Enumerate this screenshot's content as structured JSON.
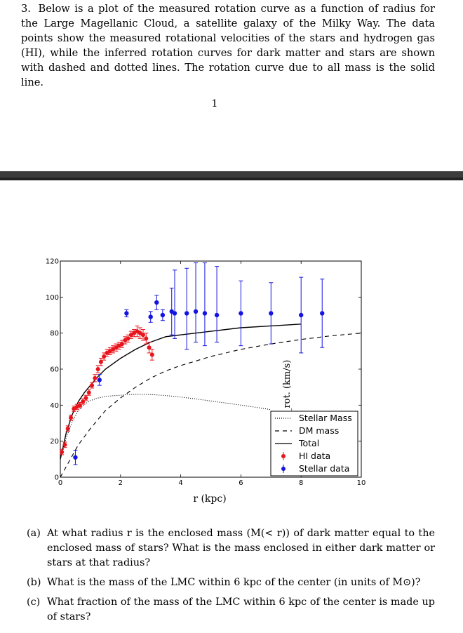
{
  "problem": {
    "number": "3.",
    "text": "Below is a plot of the measured rotation curve as a function of radius for the Large Magellanic Cloud, a satellite galaxy of the Milky Way. The data points show the measured rotational velocities of the stars and hydrogen gas (HI), while the inferred rotation curves for dark matter and stars are shown with dashed and dotted lines. The rotation curve due to all mass is the solid line."
  },
  "page_number": "1",
  "chart_data": {
    "type": "scatter",
    "xlabel": "r (kpc)",
    "ylabel": "v_rot. (km/s)",
    "xlim": [
      0,
      10
    ],
    "ylim": [
      0,
      120
    ],
    "xticks": [
      0,
      2,
      4,
      6,
      8,
      10
    ],
    "yticks": [
      0,
      20,
      40,
      60,
      80,
      100,
      120
    ],
    "legend_position": "bottom-right",
    "legend": [
      "Stellar Mass",
      "DM mass",
      "Total",
      "HI data",
      "Stellar data"
    ],
    "colors": {
      "hi": "#e8141c",
      "stellar": "#1414e0",
      "lines": "#000000"
    },
    "series": [
      {
        "name": "Stellar Mass",
        "style": "dotted",
        "x": [
          0.0,
          0.2,
          0.4,
          0.6,
          0.8,
          1.0,
          1.2,
          1.4,
          1.6,
          1.8,
          2.0,
          2.2,
          2.5,
          2.8,
          3.2,
          3.6,
          4.0,
          4.5,
          5.0,
          5.5,
          6.0,
          6.5,
          7.0
        ],
        "y": [
          10,
          22,
          31,
          37,
          40.5,
          42.5,
          43.8,
          44.5,
          45,
          45.3,
          45.5,
          45.8,
          46,
          46,
          45.7,
          45.2,
          44.5,
          43.5,
          42.3,
          41.2,
          40,
          38.8,
          37.5
        ]
      },
      {
        "name": "DM mass",
        "style": "dashed",
        "x": [
          0.0,
          0.3,
          0.6,
          1.0,
          1.5,
          2.0,
          2.5,
          3.0,
          3.5,
          4.0,
          5.0,
          6.0,
          7.0,
          8.0,
          9.0,
          10.0
        ],
        "y": [
          0,
          9,
          18,
          27,
          37,
          44,
          50,
          55,
          59,
          62,
          67,
          71,
          74,
          76.5,
          78.5,
          80
        ]
      },
      {
        "name": "Total",
        "style": "solid",
        "x": [
          0.0,
          0.2,
          0.4,
          0.6,
          0.8,
          1.0,
          1.2,
          1.5,
          2.0,
          2.5,
          3.0,
          3.5,
          4.0,
          5.0,
          6.0,
          7.0,
          8.0
        ],
        "y": [
          10,
          25,
          35,
          42,
          47,
          51,
          55,
          60,
          66,
          71,
          75,
          78,
          79,
          81,
          83,
          84,
          85
        ]
      },
      {
        "name": "HI data",
        "x": [
          0.05,
          0.15,
          0.25,
          0.35,
          0.45,
          0.55,
          0.65,
          0.75,
          0.85,
          0.95,
          1.05,
          1.15,
          1.25,
          1.35,
          1.45,
          1.55,
          1.65,
          1.75,
          1.85,
          1.95,
          2.05,
          2.15,
          2.25,
          2.35,
          2.45,
          2.55,
          2.65,
          2.75,
          2.85,
          2.95,
          3.05
        ],
        "y": [
          14,
          18,
          27,
          33,
          38,
          39,
          40,
          42,
          44,
          47,
          51,
          55,
          60,
          64,
          67,
          69,
          70,
          71,
          72,
          73,
          74,
          76,
          77,
          79,
          80,
          81,
          80,
          79,
          77,
          72,
          68
        ],
        "err": [
          1.5,
          1.5,
          1.5,
          1.5,
          1.5,
          1.5,
          1.5,
          1.5,
          1.5,
          1.5,
          1.5,
          2,
          2,
          2,
          2,
          2,
          2,
          2,
          2,
          2,
          2,
          2,
          2,
          2,
          2,
          3,
          3,
          3,
          3,
          3,
          3
        ]
      },
      {
        "name": "Stellar data",
        "x": [
          0.5,
          1.3,
          2.2,
          3.0,
          3.2,
          3.4,
          3.7,
          3.8,
          4.2,
          4.5,
          4.8,
          5.2,
          6.0,
          7.0,
          8.0,
          8.7
        ],
        "y": [
          11,
          54,
          91,
          89,
          97,
          90,
          92,
          91,
          91,
          92,
          91,
          90,
          91,
          91,
          90,
          91
        ],
        "err": [
          4,
          3,
          2,
          3,
          4,
          3,
          3,
          3,
          3,
          3,
          3,
          3,
          3,
          3,
          3,
          3
        ],
        "err_up": [
          4,
          3,
          2,
          3,
          4,
          3,
          13,
          24,
          25,
          27,
          28,
          27,
          18,
          17,
          21,
          19
        ],
        "err_down": [
          4,
          3,
          2,
          3,
          4,
          3,
          13,
          14,
          20,
          17,
          18,
          15,
          18,
          17,
          21,
          19
        ]
      }
    ]
  },
  "questions": [
    {
      "label": "(a)",
      "text": "At what radius r is the enclosed mass (M(< r)) of dark matter equal to the enclosed mass of stars? What is the mass enclosed in either dark matter or stars at that radius?"
    },
    {
      "label": "(b)",
      "text": "What is the mass of the LMC within 6 kpc of the center (in units of M⊙)?"
    },
    {
      "label": "(c)",
      "text": "What fraction of the mass of the LMC within 6 kpc of the center is made up of stars?"
    }
  ]
}
